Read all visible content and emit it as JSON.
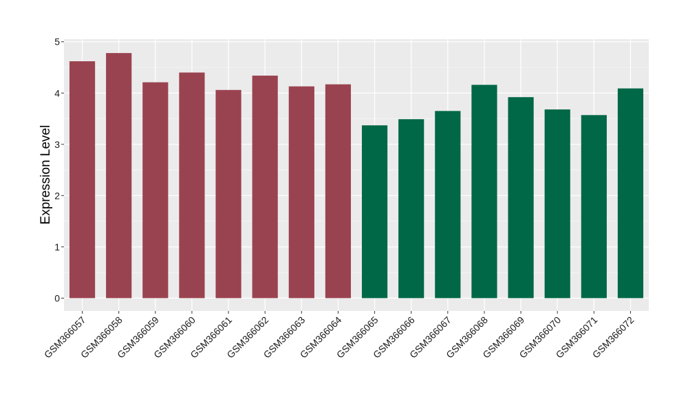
{
  "chart_data": {
    "type": "bar",
    "title": "",
    "xlabel": "",
    "ylabel": "Expression Level",
    "ylim": [
      -0.25,
      5.05
    ],
    "yticks": [
      0,
      1,
      2,
      3,
      4,
      5
    ],
    "ytick_labels": [
      "0",
      "1",
      "2",
      "3",
      "4",
      "5"
    ],
    "grid": true,
    "legend": "none",
    "categories": [
      "GSM366057",
      "GSM366058",
      "GSM366059",
      "GSM366060",
      "GSM366061",
      "GSM366062",
      "GSM366063",
      "GSM366064",
      "GSM366065",
      "GSM366066",
      "GSM366067",
      "GSM366068",
      "GSM366069",
      "GSM366070",
      "GSM366071",
      "GSM366072"
    ],
    "values": [
      4.62,
      4.78,
      4.21,
      4.4,
      4.06,
      4.34,
      4.13,
      4.17,
      3.37,
      3.49,
      3.65,
      4.16,
      3.92,
      3.68,
      3.57,
      4.09
    ],
    "bar_colors": [
      "#9a4350",
      "#9a4350",
      "#9a4350",
      "#9a4350",
      "#9a4350",
      "#9a4350",
      "#9a4350",
      "#9a4350",
      "#006747",
      "#006747",
      "#006747",
      "#006747",
      "#006747",
      "#006747",
      "#006747",
      "#006747"
    ],
    "panel_background": "#ebebeb",
    "grid_color": "#ffffff"
  }
}
